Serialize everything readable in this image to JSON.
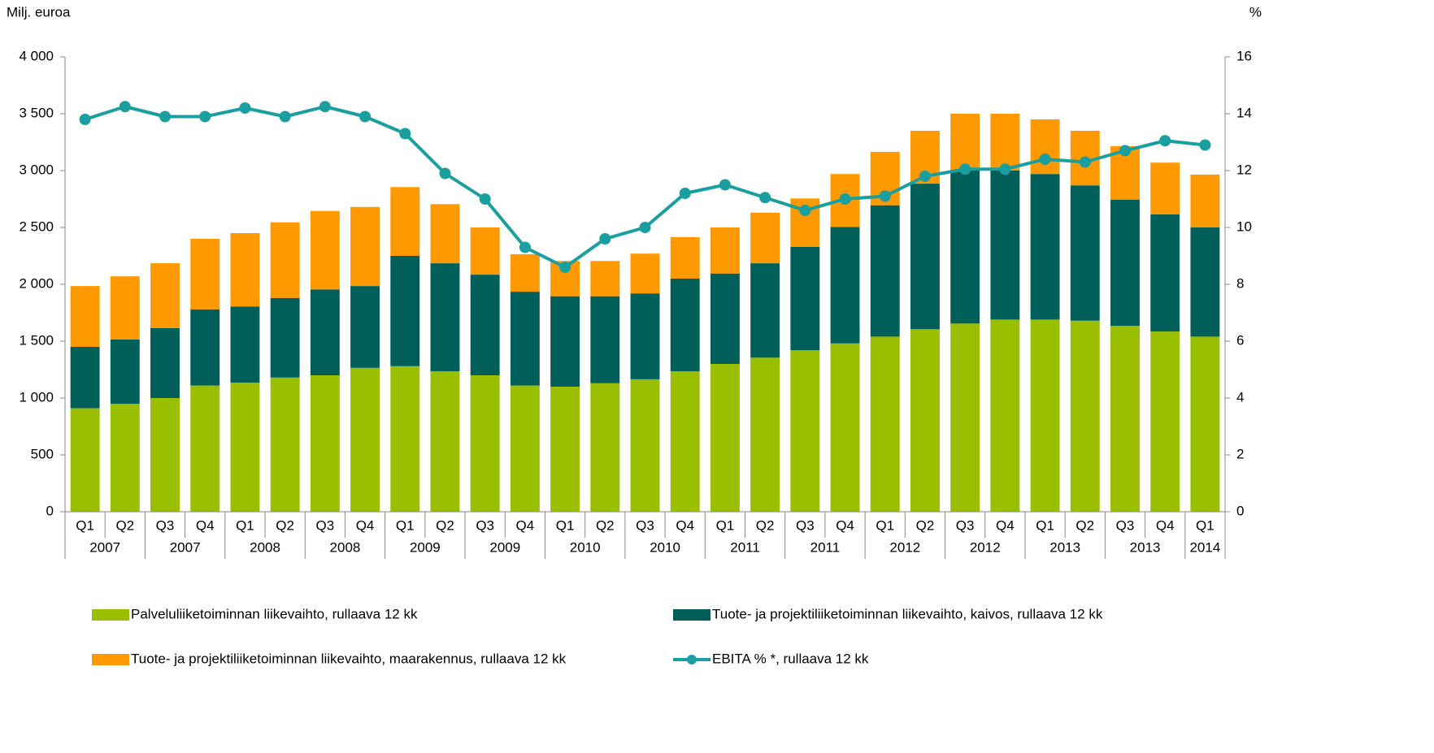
{
  "chart_data": {
    "type": "bar",
    "stacked": true,
    "y_label": "Milj. euroa",
    "y2_label": "%",
    "categories": [
      "Q1",
      "Q2",
      "Q3",
      "Q4",
      "Q1",
      "Q2",
      "Q3",
      "Q4",
      "Q1",
      "Q2",
      "Q3",
      "Q4",
      "Q1",
      "Q2",
      "Q3",
      "Q4",
      "Q1",
      "Q2",
      "Q3",
      "Q4",
      "Q1",
      "Q2",
      "Q3",
      "Q4",
      "Q1",
      "Q2",
      "Q3",
      "Q4",
      "Q1"
    ],
    "year_groups": [
      "2007",
      "2007",
      "2008",
      "2008",
      "2009",
      "2009",
      "2010",
      "2010",
      "2011",
      "2011",
      "2012",
      "2012",
      "2013",
      "2013",
      "2014"
    ],
    "ylim": [
      0,
      4000
    ],
    "yticks": [
      0,
      500,
      {
        "value": 1000,
        "label": "1 000"
      },
      {
        "value": 1500,
        "label": "1 500"
      },
      {
        "value": 2000,
        "label": "2 000"
      },
      {
        "value": 2500,
        "label": "2 500"
      },
      {
        "value": 3000,
        "label": "3 000"
      },
      {
        "value": 3500,
        "label": "3 500"
      },
      {
        "value": 4000,
        "label": "4 000"
      }
    ],
    "y2lim": [
      0,
      16
    ],
    "y2ticks": [
      0,
      2,
      4,
      6,
      8,
      10,
      12,
      14,
      16
    ],
    "series": [
      {
        "name": "Palveluliiketoiminnan liikevaihto, rullaava 12 kk",
        "color": "#99bf00",
        "type": "bar",
        "values": [
          910,
          950,
          1000,
          1110,
          1135,
          1180,
          1200,
          1265,
          1280,
          1235,
          1200,
          1110,
          1100,
          1130,
          1165,
          1235,
          1300,
          1355,
          1420,
          1480,
          1540,
          1605,
          1655,
          1690,
          1690,
          1680,
          1635,
          1585,
          1540
        ]
      },
      {
        "name": "Tuote- ja projektiliiketoiminnan liikevaihto, kaivos, rullaava 12 kk",
        "color": "#005f58",
        "type": "bar",
        "values": [
          540,
          565,
          615,
          670,
          670,
          700,
          755,
          720,
          970,
          950,
          885,
          825,
          795,
          765,
          755,
          815,
          795,
          830,
          910,
          1025,
          1155,
          1280,
          1345,
          1310,
          1280,
          1190,
          1110,
          1030,
          960
        ]
      },
      {
        "name": "Tuote- ja projektiliiketoiminnan liikevaihto, maarakennus, rullaava 12 kk",
        "color": "#ff9900",
        "type": "bar",
        "values": [
          535,
          555,
          570,
          620,
          645,
          665,
          690,
          695,
          605,
          520,
          415,
          330,
          310,
          310,
          350,
          365,
          405,
          445,
          425,
          465,
          470,
          465,
          500,
          500,
          480,
          480,
          470,
          455,
          465
        ]
      },
      {
        "name": "EBITA % *, rullaava 12 kk",
        "color": "#1a9fa0",
        "type": "line",
        "axis": "y2",
        "values": [
          13.8,
          14.25,
          13.9,
          13.9,
          14.2,
          13.9,
          14.25,
          13.9,
          13.3,
          11.9,
          11.0,
          9.3,
          8.6,
          9.6,
          10.0,
          11.2,
          11.5,
          11.05,
          10.6,
          11.0,
          11.1,
          11.8,
          12.05,
          12.05,
          12.4,
          12.3,
          12.7,
          13.05,
          12.9
        ]
      }
    ]
  }
}
